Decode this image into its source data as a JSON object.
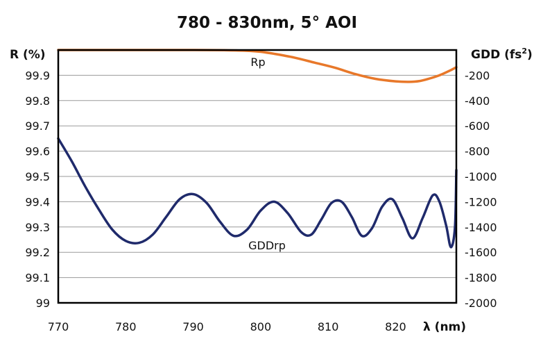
{
  "chart_data": {
    "type": "line",
    "title": "780 - 830nm, 5° AOI",
    "xlabel": "λ (nm)",
    "ylabel_left": "R (%)",
    "ylabel_right_prefix": "GDD (fs",
    "ylabel_right_sup": "2",
    "ylabel_right_suffix": ")",
    "xlim": [
      770,
      829
    ],
    "ylim_left": [
      99,
      100
    ],
    "ylim_right": [
      -2000,
      0
    ],
    "x_ticks": [
      "770",
      "780",
      "790",
      "800",
      "810",
      "820"
    ],
    "y_left_ticks": [
      "99",
      "99.1",
      "99.2",
      "99.3",
      "99.4",
      "99.5",
      "99.6",
      "99.7",
      "99.8",
      "99.9"
    ],
    "y_right_ticks": [
      "-2000",
      "-1800",
      "-1600",
      "-1400",
      "-1200",
      "-1000",
      "-800",
      "-600",
      "-400",
      "-200"
    ],
    "grid": true,
    "colors": {
      "Rp": "#e8782a",
      "GDDrp": "#1f2a6b",
      "grid": "#9a9a9a",
      "frame": "#000000"
    },
    "annotations": {
      "rp_label": "Rp",
      "gdd_label": "GDDrp"
    },
    "series": [
      {
        "name": "Rp",
        "axis": "left",
        "x": [
          770,
          780,
          790,
          795,
          798,
          800,
          802,
          805,
          808,
          811,
          814,
          817,
          820,
          822,
          823.5,
          825,
          826.5,
          828,
          829
        ],
        "y": [
          100,
          100,
          100,
          99.999,
          99.997,
          99.993,
          99.985,
          99.97,
          99.95,
          99.93,
          99.905,
          99.886,
          99.876,
          99.874,
          99.877,
          99.887,
          99.9,
          99.918,
          99.932
        ]
      },
      {
        "name": "GDDrp",
        "axis": "right",
        "x": [
          770,
          772,
          774,
          776,
          778,
          780,
          782,
          784,
          786,
          788,
          790,
          792,
          794,
          796,
          798,
          800,
          802,
          804,
          806,
          807.5,
          809,
          810.5,
          812,
          813.5,
          815,
          816.5,
          818,
          819.5,
          821,
          822.5,
          824,
          825.5,
          826.5,
          827.5,
          828.2,
          828.8,
          829
        ],
        "y": [
          -700,
          -880,
          -1080,
          -1260,
          -1420,
          -1510,
          -1525,
          -1460,
          -1320,
          -1180,
          -1140,
          -1210,
          -1360,
          -1470,
          -1420,
          -1270,
          -1200,
          -1290,
          -1440,
          -1460,
          -1340,
          -1210,
          -1200,
          -1320,
          -1470,
          -1410,
          -1240,
          -1180,
          -1330,
          -1490,
          -1330,
          -1150,
          -1200,
          -1390,
          -1560,
          -1400,
          -950
        ]
      }
    ]
  }
}
